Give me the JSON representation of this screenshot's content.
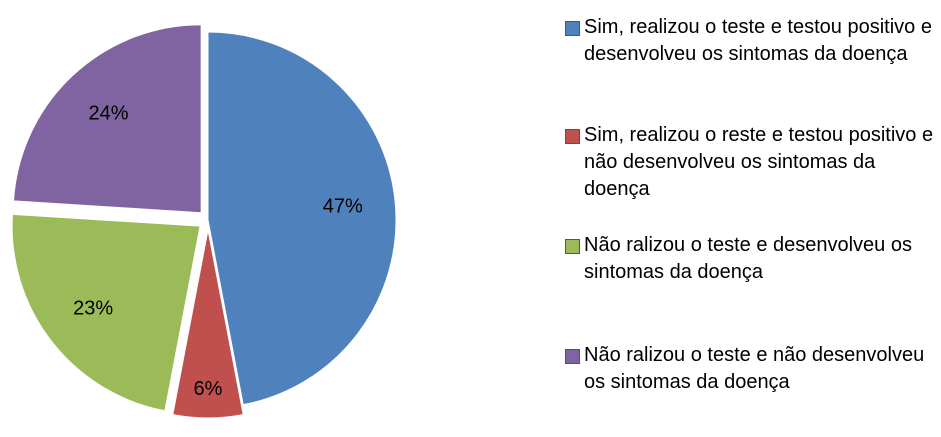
{
  "chart_data": {
    "type": "pie",
    "categories": [
      "Sim, realizou o teste e testou positivo e desenvolveu os sintomas da doença",
      "Sim, realizou o reste e testou positivo e não desenvolveu os sintomas da doença",
      "Não ralizou o teste e desenvolveu os sintomas da doença",
      "Não ralizou o teste e não desenvolveu os sintomas da doença"
    ],
    "values": [
      47,
      6,
      23,
      24
    ],
    "value_labels": [
      "47%",
      "6%",
      "23%",
      "24%"
    ],
    "colors": [
      "#4f81bd",
      "#c0504d",
      "#9bbb59",
      "#8064a2"
    ],
    "legend": "right"
  }
}
